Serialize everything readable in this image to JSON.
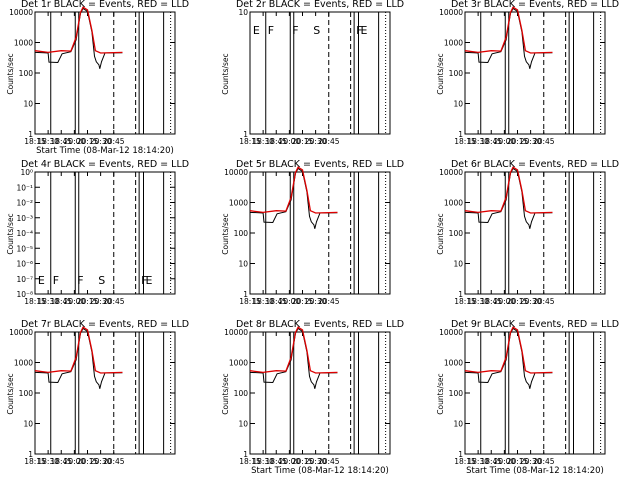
{
  "chart_data": [
    {
      "type": "line",
      "title": "Det 1r BLACK = Events, RED = LLD",
      "xlabel": "Start Time (08-Mar-12 18:14:20)",
      "ylabel": "Counts/sec",
      "y_scale": "log",
      "ylim": [
        1,
        12000
      ],
      "xlim": [
        "18:15",
        "20:55"
      ],
      "x_ticks": [
        "18:15",
        "18:30",
        "18:45",
        "20:00",
        "20:15",
        "20:30",
        "20:45"
      ],
      "y_ticks": [
        "1",
        "10",
        "100",
        "1000",
        "10000"
      ],
      "interval_flags": [],
      "series": [
        {
          "name": "Events",
          "color": "#000000",
          "x": [
            "18:15",
            "18:25",
            "18:30",
            "18:31",
            "18:41",
            "18:46",
            "19:56",
            "20:02",
            "20:07",
            "20:10",
            "20:15",
            "20:20",
            "20:23",
            "20:25",
            "20:28",
            "20:29",
            "20:31",
            "20:35",
            "20:55"
          ],
          "values": [
            400,
            390,
            380,
            195,
            190,
            360,
            420,
            1000,
            7000,
            10000,
            8000,
            1800,
            300,
            200,
            160,
            120,
            200,
            380,
            390
          ]
        },
        {
          "name": "LLD",
          "color": "#dd0000",
          "x": [
            "18:15",
            "18:30",
            "18:45",
            "19:56",
            "20:02",
            "20:07",
            "20:10",
            "20:15",
            "20:20",
            "20:24",
            "20:30",
            "20:55"
          ],
          "values": [
            450,
            400,
            450,
            440,
            1200,
            7500,
            11000,
            9000,
            2000,
            450,
            380,
            400
          ]
        }
      ]
    },
    {
      "type": "line",
      "title": "Det 2r BLACK = Events, RED = LLD",
      "xlabel": "",
      "ylabel": "Counts/sec",
      "y_scale": "log",
      "ylim": [
        1,
        10
      ],
      "xlim": [
        "18:15",
        "20:55"
      ],
      "x_ticks": [
        "18:15",
        "18:30",
        "18:45",
        "20:00",
        "20:15",
        "20:30",
        "20:45"
      ],
      "y_ticks": [
        "1",
        "10"
      ],
      "interval_flags": [
        "E",
        "F",
        "F",
        "S",
        "F",
        "E"
      ],
      "series": []
    },
    {
      "type": "line",
      "title": "Det 3r BLACK = Events, RED = LLD",
      "xlabel": "",
      "ylabel": "Counts/sec",
      "y_scale": "log",
      "ylim": [
        1,
        12000
      ],
      "xlim": [
        "18:15",
        "20:55"
      ],
      "x_ticks": [
        "18:15",
        "18:30",
        "18:45",
        "20:00",
        "20:15",
        "20:30",
        "20:45"
      ],
      "y_ticks": [
        "1",
        "10",
        "100",
        "1000",
        "10000"
      ],
      "interval_flags": [],
      "series": [
        {
          "name": "Events",
          "color": "#000000",
          "x": [
            "18:15",
            "18:25",
            "18:30",
            "18:31",
            "18:41",
            "18:46",
            "19:56",
            "20:02",
            "20:07",
            "20:10",
            "20:15",
            "20:20",
            "20:23",
            "20:25",
            "20:28",
            "20:29",
            "20:31",
            "20:35",
            "20:55"
          ],
          "values": [
            400,
            390,
            380,
            195,
            190,
            360,
            420,
            1000,
            7000,
            10000,
            8000,
            1800,
            300,
            200,
            160,
            120,
            200,
            380,
            390
          ]
        },
        {
          "name": "LLD",
          "color": "#dd0000",
          "x": [
            "18:15",
            "18:30",
            "18:45",
            "19:56",
            "20:02",
            "20:07",
            "20:10",
            "20:15",
            "20:20",
            "20:24",
            "20:30",
            "20:55"
          ],
          "values": [
            450,
            400,
            450,
            440,
            1200,
            7500,
            11000,
            9000,
            2000,
            450,
            380,
            400
          ]
        }
      ]
    },
    {
      "type": "line",
      "title": "Det 4r BLACK = Events, RED = LLD",
      "xlabel": "",
      "ylabel": "Counts/sec",
      "y_scale": "log",
      "ylim": [
        1e-08,
        1e-06
      ],
      "xlim": [
        "18:15",
        "20:55"
      ],
      "x_ticks": [
        "18:15",
        "18:30",
        "18:45",
        "20:00",
        "20:15",
        "20:30",
        "20:45"
      ],
      "y_ticks": [
        "10⁻⁸",
        "10⁻⁷",
        "10⁻⁶",
        "10⁻⁵",
        "10⁻⁴",
        "10⁻³",
        "10⁻²",
        "10⁻¹",
        "10⁰"
      ],
      "interval_flags": [
        "E",
        "F",
        "F",
        "S",
        "F",
        "E"
      ],
      "series": []
    },
    {
      "type": "line",
      "title": "Det 5r BLACK = Events, RED = LLD",
      "xlabel": "",
      "ylabel": "Counts/sec",
      "y_scale": "log",
      "ylim": [
        1,
        12000
      ],
      "xlim": [
        "18:15",
        "20:55"
      ],
      "x_ticks": [
        "18:15",
        "18:30",
        "18:45",
        "20:00",
        "20:15",
        "20:30",
        "20:45"
      ],
      "y_ticks": [
        "1",
        "10",
        "100",
        "1000",
        "10000"
      ],
      "interval_flags": [],
      "series": [
        {
          "name": "Events",
          "color": "#000000",
          "x": [
            "18:15",
            "18:25",
            "18:30",
            "18:31",
            "18:41",
            "18:46",
            "19:56",
            "20:02",
            "20:07",
            "20:10",
            "20:15",
            "20:20",
            "20:23",
            "20:25",
            "20:28",
            "20:29",
            "20:31",
            "20:35",
            "20:55"
          ],
          "values": [
            400,
            390,
            380,
            195,
            190,
            360,
            420,
            1000,
            7000,
            10000,
            8000,
            1800,
            300,
            200,
            160,
            120,
            200,
            380,
            390
          ]
        },
        {
          "name": "LLD",
          "color": "#dd0000",
          "x": [
            "18:15",
            "18:30",
            "18:45",
            "19:56",
            "20:02",
            "20:07",
            "20:10",
            "20:15",
            "20:20",
            "20:24",
            "20:30",
            "20:55"
          ],
          "values": [
            450,
            400,
            450,
            440,
            1200,
            7500,
            11000,
            9000,
            2000,
            450,
            380,
            400
          ]
        }
      ]
    },
    {
      "type": "line",
      "title": "Det 6r BLACK = Events, RED = LLD",
      "xlabel": "",
      "ylabel": "Counts/sec",
      "y_scale": "log",
      "ylim": [
        1,
        12000
      ],
      "xlim": [
        "18:15",
        "20:55"
      ],
      "x_ticks": [
        "18:15",
        "18:30",
        "18:45",
        "20:00",
        "20:15",
        "20:30",
        "20:45"
      ],
      "y_ticks": [
        "1",
        "10",
        "100",
        "1000",
        "10000"
      ],
      "interval_flags": [],
      "series": [
        {
          "name": "Events",
          "color": "#000000",
          "x": [
            "18:15",
            "18:25",
            "18:30",
            "18:31",
            "18:41",
            "18:46",
            "19:56",
            "20:02",
            "20:07",
            "20:10",
            "20:15",
            "20:20",
            "20:23",
            "20:25",
            "20:28",
            "20:29",
            "20:31",
            "20:35",
            "20:55"
          ],
          "values": [
            400,
            390,
            380,
            195,
            190,
            360,
            420,
            1000,
            7000,
            10000,
            8000,
            1800,
            300,
            200,
            160,
            120,
            200,
            380,
            390
          ]
        },
        {
          "name": "LLD",
          "color": "#dd0000",
          "x": [
            "18:15",
            "18:30",
            "18:45",
            "19:56",
            "20:02",
            "20:07",
            "20:10",
            "20:15",
            "20:20",
            "20:24",
            "20:30",
            "20:55"
          ],
          "values": [
            450,
            400,
            450,
            440,
            1200,
            7500,
            11000,
            9000,
            2000,
            450,
            380,
            400
          ]
        }
      ]
    },
    {
      "type": "line",
      "title": "Det 7r BLACK = Events, RED = LLD",
      "xlabel": "",
      "ylabel": "Counts/sec",
      "y_scale": "log",
      "ylim": [
        1,
        12000
      ],
      "xlim": [
        "18:15",
        "20:55"
      ],
      "x_ticks": [
        "18:15",
        "18:30",
        "18:45",
        "20:00",
        "20:15",
        "20:30",
        "20:45"
      ],
      "y_ticks": [
        "1",
        "10",
        "100",
        "1000",
        "10000"
      ],
      "interval_flags": [],
      "series": [
        {
          "name": "Events",
          "color": "#000000",
          "x": [
            "18:15",
            "18:25",
            "18:30",
            "18:31",
            "18:41",
            "18:46",
            "19:56",
            "20:02",
            "20:07",
            "20:10",
            "20:15",
            "20:20",
            "20:23",
            "20:25",
            "20:28",
            "20:29",
            "20:31",
            "20:35",
            "20:55"
          ],
          "values": [
            400,
            390,
            380,
            195,
            190,
            360,
            420,
            1000,
            7000,
            10000,
            8000,
            1800,
            300,
            200,
            160,
            120,
            200,
            380,
            390
          ]
        },
        {
          "name": "LLD",
          "color": "#dd0000",
          "x": [
            "18:15",
            "18:30",
            "18:45",
            "19:56",
            "20:02",
            "20:07",
            "20:10",
            "20:15",
            "20:20",
            "20:24",
            "20:30",
            "20:55"
          ],
          "values": [
            450,
            400,
            450,
            440,
            1200,
            7500,
            11000,
            9000,
            2000,
            450,
            380,
            400
          ]
        }
      ]
    },
    {
      "type": "line",
      "title": "Det 8r BLACK = Events, RED = LLD",
      "xlabel": "Start Time (08-Mar-12 18:14:20)",
      "ylabel": "Counts/sec",
      "y_scale": "log",
      "ylim": [
        1,
        12000
      ],
      "xlim": [
        "18:15",
        "20:55"
      ],
      "x_ticks": [
        "18:15",
        "18:30",
        "18:45",
        "20:00",
        "20:15",
        "20:30",
        "20:45"
      ],
      "y_ticks": [
        "1",
        "10",
        "100",
        "1000",
        "10000"
      ],
      "interval_flags": [],
      "series": [
        {
          "name": "Events",
          "color": "#000000",
          "x": [
            "18:15",
            "18:25",
            "18:30",
            "18:31",
            "18:41",
            "18:46",
            "19:56",
            "20:02",
            "20:07",
            "20:10",
            "20:15",
            "20:20",
            "20:23",
            "20:25",
            "20:28",
            "20:29",
            "20:31",
            "20:35",
            "20:55"
          ],
          "values": [
            400,
            390,
            380,
            195,
            190,
            360,
            420,
            1000,
            7000,
            10000,
            8000,
            1800,
            300,
            200,
            160,
            120,
            200,
            380,
            390
          ]
        },
        {
          "name": "LLD",
          "color": "#dd0000",
          "x": [
            "18:15",
            "18:30",
            "18:45",
            "19:56",
            "20:02",
            "20:07",
            "20:10",
            "20:15",
            "20:20",
            "20:24",
            "20:30",
            "20:55"
          ],
          "values": [
            450,
            400,
            450,
            440,
            1200,
            7500,
            11000,
            9000,
            2000,
            450,
            380,
            400
          ]
        }
      ]
    },
    {
      "type": "line",
      "title": "Det 9r BLACK = Events, RED = LLD",
      "xlabel": "Start Time (08-Mar-12 18:14:20)",
      "ylabel": "Counts/sec",
      "y_scale": "log",
      "ylim": [
        1,
        12000
      ],
      "xlim": [
        "18:15",
        "20:55"
      ],
      "x_ticks": [
        "18:15",
        "18:30",
        "18:45",
        "20:00",
        "20:15",
        "20:30",
        "20:45"
      ],
      "y_ticks": [
        "1",
        "10",
        "100",
        "1000",
        "10000"
      ],
      "interval_flags": [],
      "series": [
        {
          "name": "Events",
          "color": "#000000",
          "x": [
            "18:15",
            "18:25",
            "18:30",
            "18:31",
            "18:41",
            "18:46",
            "19:56",
            "20:02",
            "20:07",
            "20:10",
            "20:15",
            "20:20",
            "20:23",
            "20:25",
            "20:28",
            "20:29",
            "20:31",
            "20:35",
            "20:55"
          ],
          "values": [
            400,
            390,
            380,
            195,
            190,
            360,
            420,
            1000,
            7000,
            10000,
            8000,
            1800,
            300,
            200,
            160,
            120,
            200,
            380,
            390
          ]
        },
        {
          "name": "LLD",
          "color": "#dd0000",
          "x": [
            "18:15",
            "18:30",
            "18:45",
            "19:56",
            "20:02",
            "20:07",
            "20:10",
            "20:15",
            "20:20",
            "20:24",
            "20:30",
            "20:55"
          ],
          "values": [
            450,
            400,
            450,
            440,
            1200,
            7500,
            11000,
            9000,
            2000,
            450,
            380,
            400
          ]
        }
      ]
    }
  ]
}
